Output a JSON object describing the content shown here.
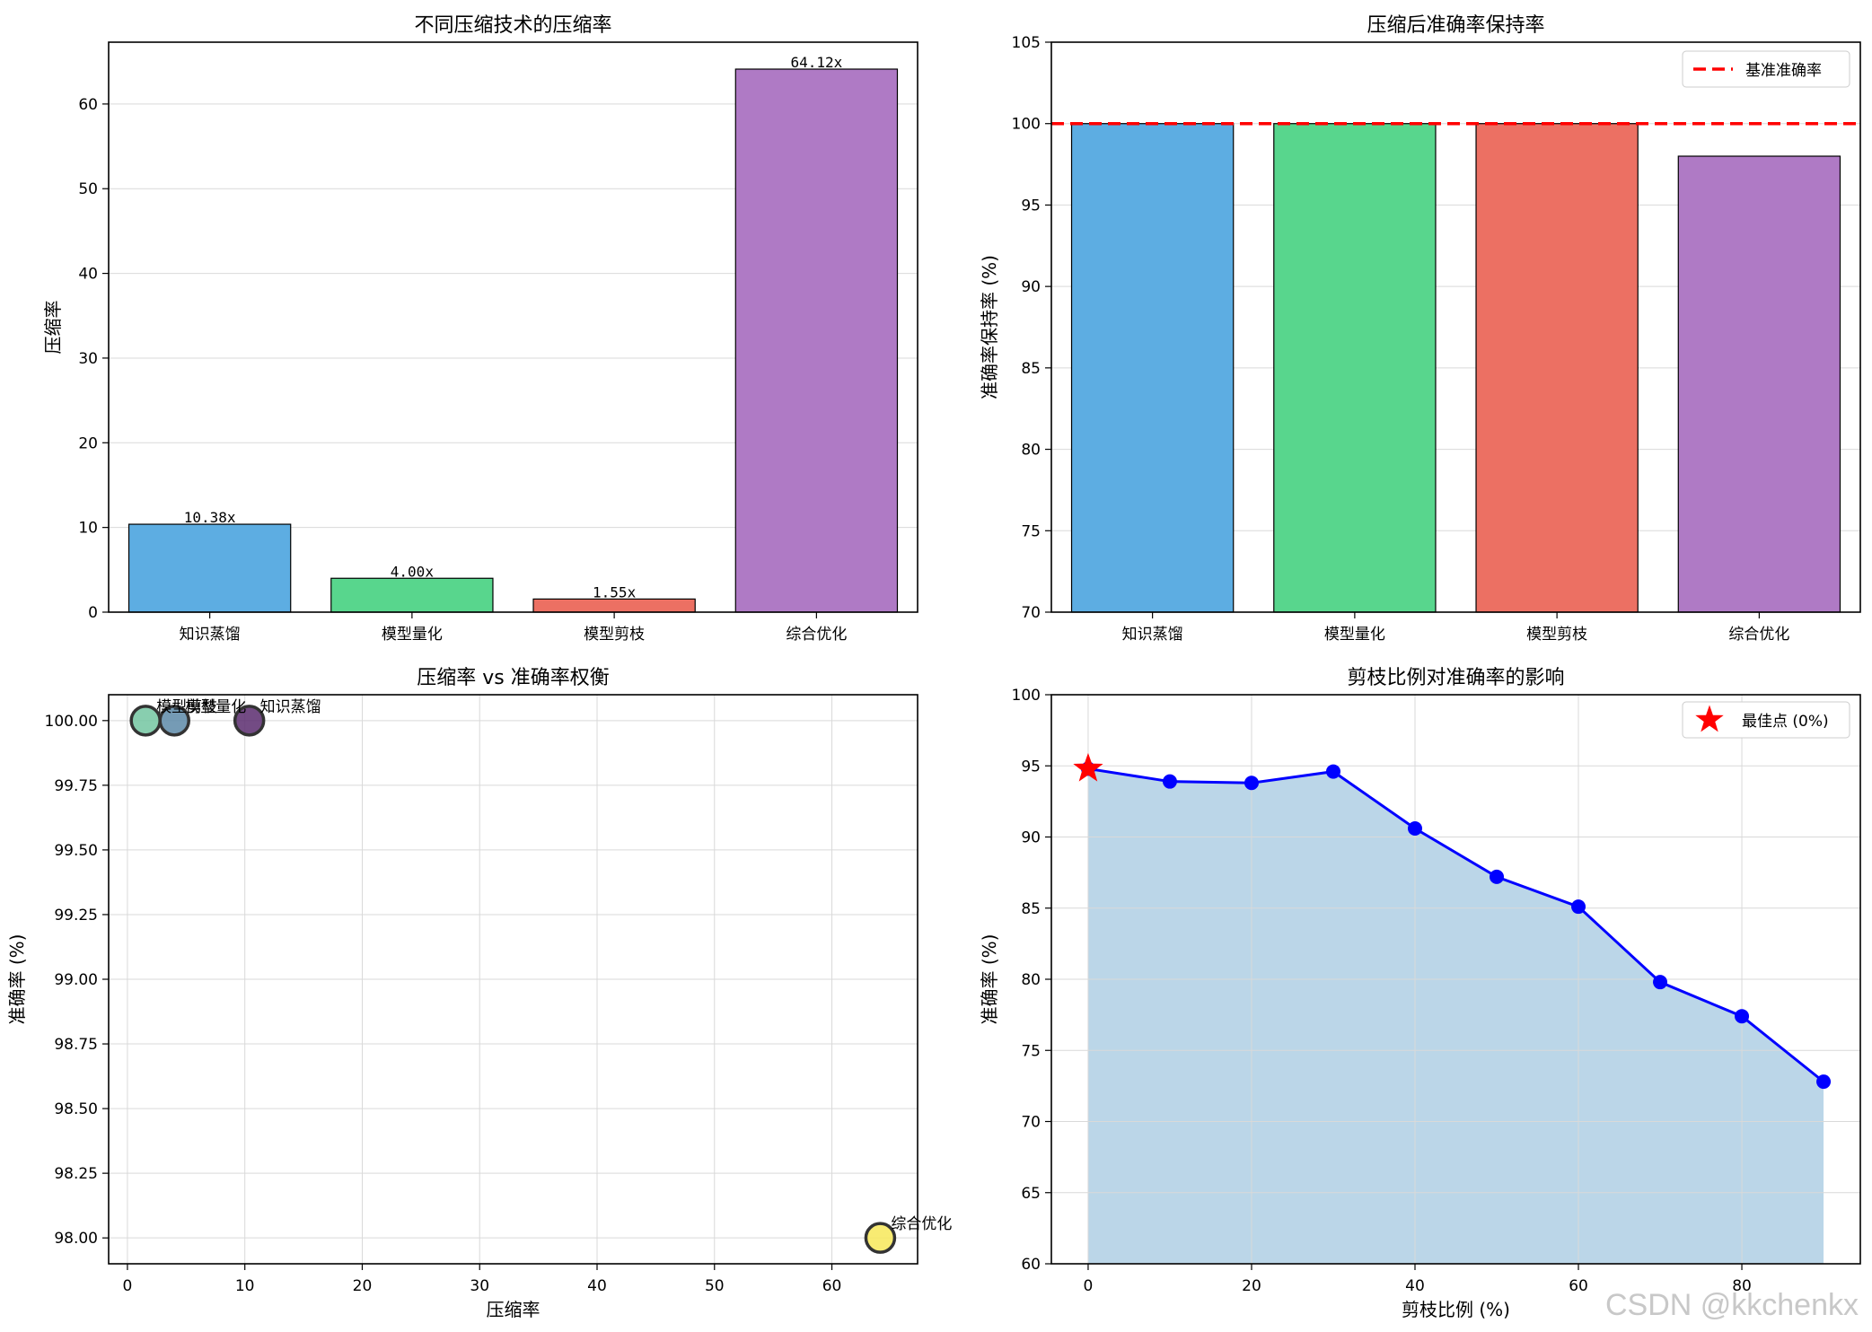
{
  "watermark": "CSDN @kkchenkx",
  "chart_data": [
    {
      "type": "bar",
      "title": "不同压缩技术的压缩率",
      "xlabel": "",
      "ylabel": "压缩率",
      "categories": [
        "知识蒸馏",
        "模型量化",
        "模型剪枝",
        "综合优化"
      ],
      "values": [
        10.38,
        4.0,
        1.55,
        64.12
      ],
      "data_labels": [
        "10.38x",
        "4.00x",
        "1.55x",
        "64.12x"
      ],
      "colors": [
        "#5dade2",
        "#58d68d",
        "#ec7063",
        "#af7ac5"
      ],
      "ylim": [
        0,
        67.3
      ],
      "yticks": [
        0,
        10,
        20,
        30,
        40,
        50,
        60
      ],
      "grid": "y"
    },
    {
      "type": "bar",
      "title": "压缩后准确率保持率",
      "xlabel": "",
      "ylabel": "准确率保持率 (%)",
      "categories": [
        "知识蒸馏",
        "模型量化",
        "模型剪枝",
        "综合优化"
      ],
      "values": [
        100.0,
        100.0,
        100.0,
        98.0
      ],
      "colors": [
        "#5dade2",
        "#58d68d",
        "#ec7063",
        "#af7ac5"
      ],
      "ylim": [
        70,
        105
      ],
      "yticks": [
        70,
        75,
        80,
        85,
        90,
        95,
        100,
        105
      ],
      "reference_line": {
        "y": 100,
        "label": "基准准确率",
        "color": "#ff0000"
      },
      "legend": "top-right",
      "grid": "y"
    },
    {
      "type": "scatter",
      "title": "压缩率 vs 准确率权衡",
      "xlabel": "压缩率",
      "ylabel": "准确率 (%)",
      "points": [
        {
          "label": "知识蒸馏",
          "x": 10.38,
          "y": 100.0,
          "color": "#5b2c6f"
        },
        {
          "label": "模型量化",
          "x": 4.0,
          "y": 100.0,
          "color": "#5d8aa8"
        },
        {
          "label": "模型剪枝",
          "x": 1.55,
          "y": 100.0,
          "color": "#73c6a1"
        },
        {
          "label": "综合优化",
          "x": 64.12,
          "y": 98.0,
          "color": "#f7e859"
        }
      ],
      "xlim": [
        -1.6,
        67.3
      ],
      "ylim": [
        97.9,
        100.1
      ],
      "xticks": [
        0,
        10,
        20,
        30,
        40,
        50,
        60
      ],
      "yticks": [
        98.0,
        98.25,
        98.5,
        98.75,
        99.0,
        99.25,
        99.5,
        99.75,
        100.0
      ],
      "ytick_labels": [
        "98.00",
        "98.25",
        "98.50",
        "98.75",
        "99.00",
        "99.25",
        "99.50",
        "99.75",
        "100.00"
      ],
      "grid": "both"
    },
    {
      "type": "line",
      "title": "剪枝比例对准确率的影响",
      "xlabel": "剪枝比例 (%)",
      "ylabel": "准确率 (%)",
      "x": [
        0,
        10,
        20,
        30,
        40,
        50,
        60,
        70,
        80,
        90
      ],
      "y": [
        94.8,
        93.9,
        93.8,
        94.6,
        90.6,
        87.2,
        85.1,
        79.8,
        77.4,
        72.8
      ],
      "line_color": "#0000ff",
      "fill_color": "#bbd6e8",
      "best_point": {
        "x": 0,
        "y": 94.8,
        "label": "最佳点 (0%)",
        "color": "#ff0000"
      },
      "xlim": [
        -4.5,
        94.5
      ],
      "ylim": [
        60,
        100
      ],
      "xticks": [
        0,
        20,
        40,
        60,
        80
      ],
      "yticks": [
        60,
        65,
        70,
        75,
        80,
        85,
        90,
        95,
        100
      ],
      "legend": "top-right",
      "grid": "both"
    }
  ]
}
